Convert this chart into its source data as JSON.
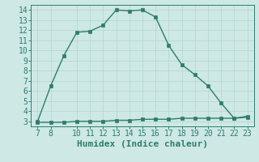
{
  "title": "",
  "xlabel": "Humidex (Indice chaleur)",
  "x_upper": [
    7,
    8,
    9,
    10,
    11,
    12,
    13,
    14,
    15,
    16,
    17,
    18,
    19,
    20,
    21,
    22,
    23
  ],
  "y_upper": [
    3.0,
    6.5,
    9.5,
    11.8,
    11.9,
    12.5,
    14.0,
    13.9,
    14.0,
    13.3,
    10.5,
    8.6,
    7.6,
    6.5,
    4.8,
    3.3,
    3.5
  ],
  "x_lower": [
    7,
    8,
    9,
    10,
    11,
    12,
    13,
    14,
    15,
    16,
    17,
    18,
    19,
    20,
    21,
    22,
    23
  ],
  "y_lower": [
    2.9,
    2.9,
    2.9,
    3.0,
    3.0,
    3.0,
    3.1,
    3.1,
    3.2,
    3.2,
    3.2,
    3.3,
    3.3,
    3.3,
    3.3,
    3.3,
    3.4
  ],
  "line_color": "#2e7d6e",
  "bg_color": "#cde8e5",
  "grid_color": "#b8d8d4",
  "text_color": "#2e7d6e",
  "xlim": [
    6.5,
    23.5
  ],
  "ylim": [
    2.5,
    14.5
  ],
  "xticks": [
    7,
    8,
    10,
    11,
    12,
    13,
    14,
    15,
    16,
    17,
    18,
    19,
    20,
    21,
    22,
    23
  ],
  "yticks": [
    3,
    4,
    5,
    6,
    7,
    8,
    9,
    10,
    11,
    12,
    13,
    14
  ],
  "tick_fontsize": 7,
  "xlabel_fontsize": 8
}
